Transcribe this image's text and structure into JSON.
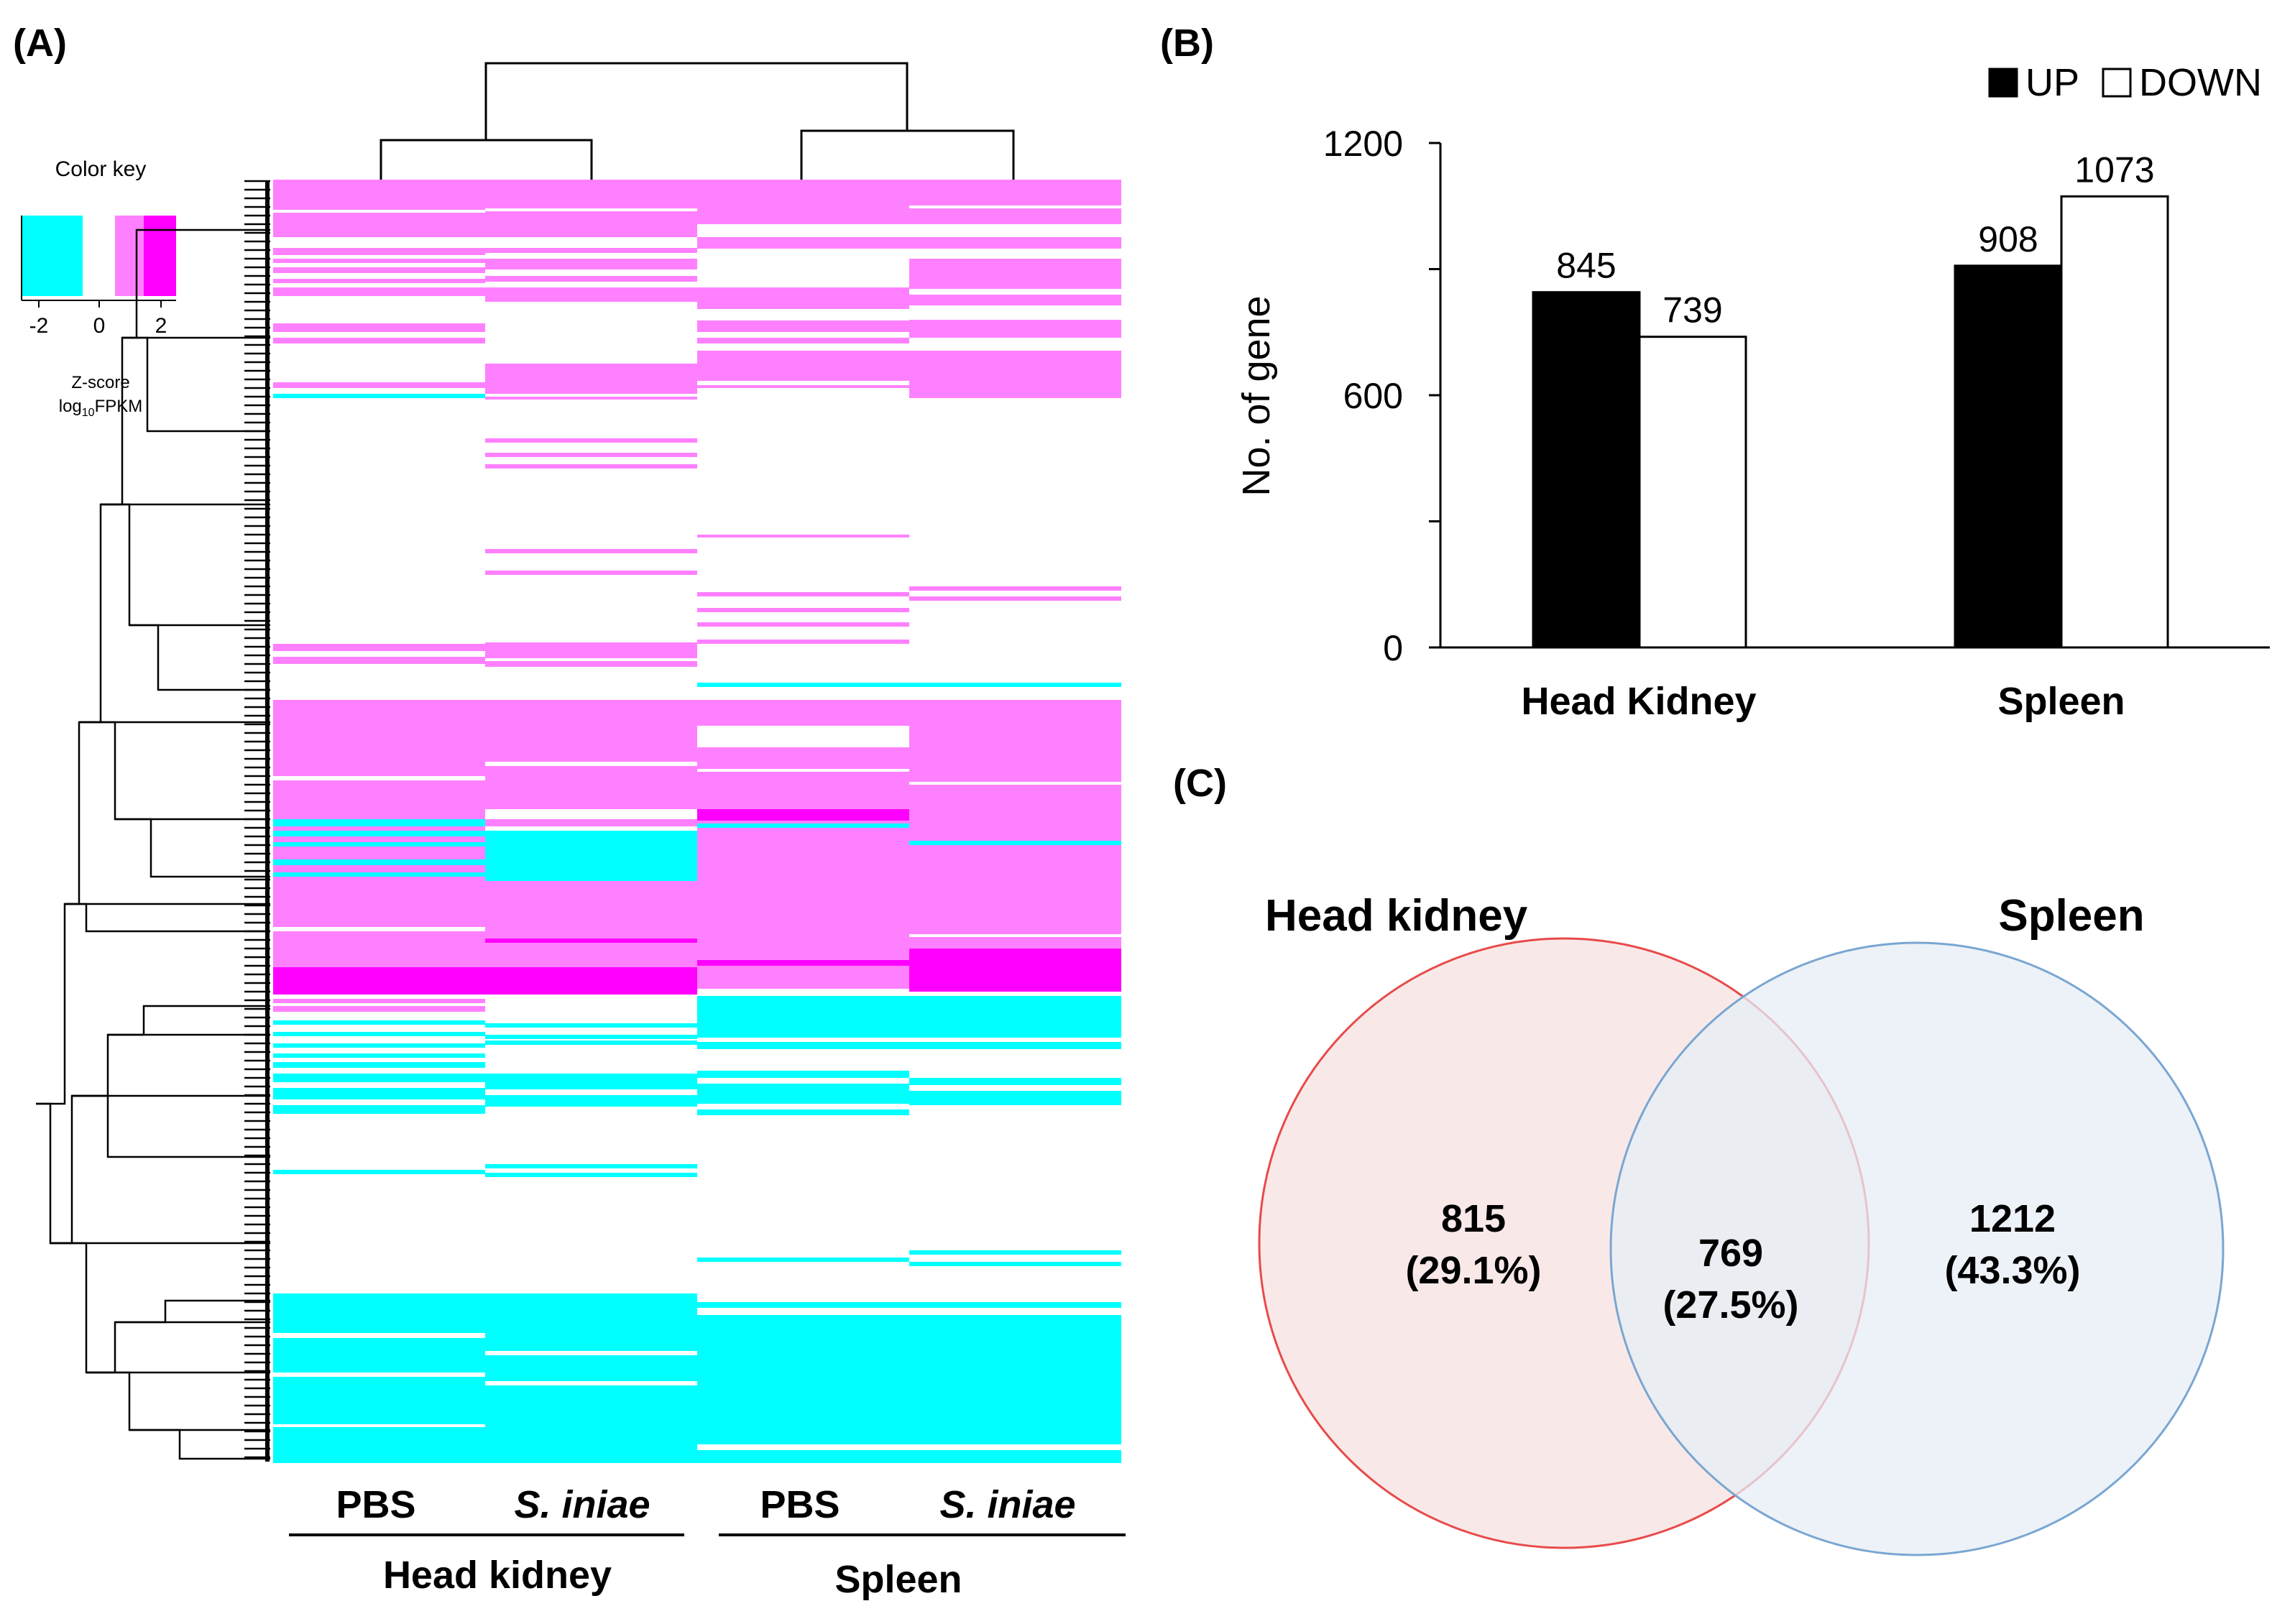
{
  "panels": {
    "a_label": "(A)",
    "b_label": "(B)",
    "c_label": "(C)"
  },
  "heatmap": {
    "color_key": {
      "title": "Color key",
      "ticks": [
        "-2",
        "0",
        "2"
      ],
      "caption_line1": "Z-score",
      "caption_line2_prefix": "log",
      "caption_line2_sub": "10",
      "caption_line2_suffix": "FPKM"
    },
    "colors": {
      "low": "#00FFFF",
      "mid_high": "#FF80FF",
      "high": "#FF00FF",
      "neutral": "#FFFFFF"
    },
    "columns": [
      {
        "label": "PBS",
        "italic": false
      },
      {
        "label": "S. iniae",
        "italic": true
      },
      {
        "label": "PBS",
        "italic": false
      },
      {
        "label": "S. iniae",
        "italic": true
      }
    ],
    "groups": [
      "Head kidney",
      "Spleen"
    ]
  },
  "chart_data": [
    {
      "type": "bar",
      "title": "",
      "xlabel": "",
      "ylabel": "No. of gene",
      "ylim": [
        0,
        1200
      ],
      "yticks": [
        0,
        600,
        1200
      ],
      "categories": [
        "Head Kidney",
        "Spleen"
      ],
      "series": [
        {
          "name": "UP",
          "color": "#000000",
          "values": [
            845,
            908
          ]
        },
        {
          "name": "DOWN",
          "color": "#FFFFFF",
          "values": [
            739,
            1073
          ]
        }
      ],
      "legend": "top-right"
    },
    {
      "type": "venn",
      "sets": [
        {
          "name": "Head kidney",
          "color": "#E84A4A",
          "fill": "#F8E9E8"
        },
        {
          "name": "Spleen",
          "color": "#7AA6D2",
          "fill": "#E6EDF6"
        }
      ],
      "regions": [
        {
          "region": "Head kidney only",
          "count": "815",
          "percent": "(29.1%)"
        },
        {
          "region": "Both",
          "count": "769",
          "percent": "(27.5%)"
        },
        {
          "region": "Spleen only",
          "count": "1212",
          "percent": "(43.3%)"
        }
      ]
    }
  ]
}
